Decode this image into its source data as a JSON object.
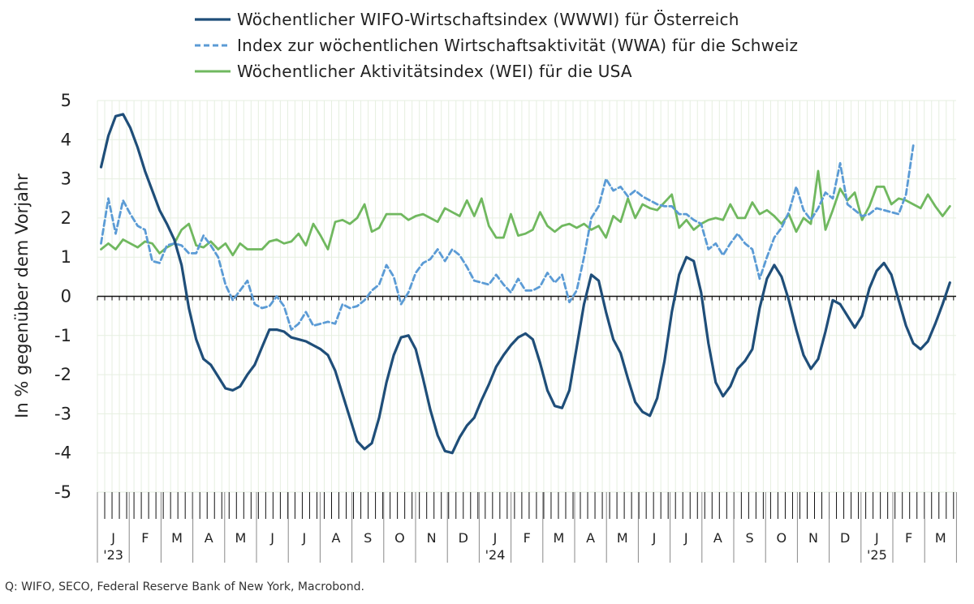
{
  "chart_data": {
    "type": "line",
    "ylabel": "In % gegenüber dem Vorjahr",
    "ylim": [
      -5,
      5
    ],
    "y_ticks": [
      5,
      4,
      3,
      2,
      1,
      0,
      -1,
      -2,
      -3,
      -4,
      -5
    ],
    "grid": true,
    "legend_position": "top",
    "x_unit": "weeks since first week of January 2023",
    "months": [
      "J",
      "F",
      "M",
      "A",
      "M",
      "J",
      "J",
      "A",
      "S",
      "O",
      "N",
      "D",
      "J",
      "F",
      "M",
      "A",
      "M",
      "J",
      "J",
      "A",
      "S",
      "O",
      "N",
      "D",
      "J",
      "F",
      "M"
    ],
    "year_labels": [
      {
        "month_index": 0,
        "label": "'23"
      },
      {
        "month_index": 12,
        "label": "'24"
      },
      {
        "month_index": 24,
        "label": "'25"
      }
    ],
    "series": [
      {
        "name": "Wöchentlicher WIFO-Wirtschaftsindex (WWWI) für Österreich",
        "color": "#1f4e79",
        "style": "solid",
        "values": [
          3.3,
          4.1,
          4.6,
          4.65,
          4.3,
          3.8,
          3.2,
          2.7,
          2.2,
          1.85,
          1.45,
          0.8,
          -0.3,
          -1.1,
          -1.6,
          -1.75,
          -2.05,
          -2.35,
          -2.4,
          -2.3,
          -2.0,
          -1.75,
          -1.3,
          -0.85,
          -0.85,
          -0.9,
          -1.05,
          -1.1,
          -1.15,
          -1.25,
          -1.35,
          -1.5,
          -1.9,
          -2.5,
          -3.1,
          -3.7,
          -3.9,
          -3.75,
          -3.1,
          -2.2,
          -1.5,
          -1.05,
          -1.0,
          -1.35,
          -2.1,
          -2.9,
          -3.55,
          -3.95,
          -4.0,
          -3.6,
          -3.3,
          -3.1,
          -2.65,
          -2.25,
          -1.8,
          -1.5,
          -1.25,
          -1.05,
          -0.95,
          -1.1,
          -1.7,
          -2.4,
          -2.8,
          -2.85,
          -2.4,
          -1.3,
          -0.2,
          0.55,
          0.4,
          -0.4,
          -1.1,
          -1.45,
          -2.1,
          -2.7,
          -2.95,
          -3.05,
          -2.6,
          -1.65,
          -0.4,
          0.55,
          1.0,
          0.9,
          0.1,
          -1.2,
          -2.2,
          -2.55,
          -2.3,
          -1.85,
          -1.65,
          -1.35,
          -0.3,
          0.45,
          0.8,
          0.5,
          -0.1,
          -0.85,
          -1.5,
          -1.85,
          -1.6,
          -0.9,
          -0.1,
          -0.2,
          -0.5,
          -0.8,
          -0.5,
          0.2,
          0.65,
          0.85,
          0.55,
          -0.1,
          -0.75,
          -1.2,
          -1.35,
          -1.15,
          -0.7,
          -0.2,
          0.35
        ]
      },
      {
        "name": "Index zur wöchentlichen Wirtschaftsaktivität (WWA) für die Schweiz",
        "color": "#5b9bd5",
        "style": "dashed",
        "values": [
          1.35,
          2.5,
          1.6,
          2.45,
          2.1,
          1.8,
          1.7,
          0.9,
          0.85,
          1.3,
          1.35,
          1.3,
          1.1,
          1.1,
          1.55,
          1.3,
          1.0,
          0.3,
          -0.1,
          0.15,
          0.4,
          -0.2,
          -0.3,
          -0.25,
          0.0,
          -0.25,
          -0.85,
          -0.7,
          -0.4,
          -0.75,
          -0.7,
          -0.65,
          -0.7,
          -0.2,
          -0.3,
          -0.25,
          -0.1,
          0.15,
          0.3,
          0.8,
          0.5,
          -0.2,
          0.1,
          0.6,
          0.85,
          0.95,
          1.2,
          0.9,
          1.2,
          1.05,
          0.75,
          0.4,
          0.35,
          0.3,
          0.55,
          0.3,
          0.1,
          0.45,
          0.15,
          0.15,
          0.25,
          0.6,
          0.35,
          0.55,
          -0.15,
          0.15,
          1.0,
          2.0,
          2.3,
          3.0,
          2.7,
          2.8,
          2.55,
          2.7,
          2.55,
          2.45,
          2.35,
          2.3,
          2.3,
          2.1,
          2.1,
          1.95,
          1.85,
          1.2,
          1.35,
          1.05,
          1.35,
          1.6,
          1.35,
          1.2,
          0.45,
          1.0,
          1.5,
          1.75,
          2.15,
          2.8,
          2.2,
          1.95,
          2.25,
          2.65,
          2.5,
          3.4,
          2.35,
          2.2,
          2.05,
          2.1,
          2.25,
          2.2,
          2.15,
          2.1,
          2.6,
          3.85
        ]
      },
      {
        "name": "Wöchentlicher Aktivitätsindex (WEI) für die USA",
        "color": "#70b85f",
        "style": "solid",
        "values": [
          1.2,
          1.35,
          1.2,
          1.45,
          1.35,
          1.25,
          1.4,
          1.35,
          1.1,
          1.25,
          1.35,
          1.7,
          1.85,
          1.3,
          1.25,
          1.4,
          1.2,
          1.35,
          1.05,
          1.35,
          1.2,
          1.2,
          1.2,
          1.4,
          1.45,
          1.35,
          1.4,
          1.6,
          1.3,
          1.85,
          1.55,
          1.2,
          1.9,
          1.95,
          1.85,
          2.0,
          2.35,
          1.65,
          1.75,
          2.1,
          2.1,
          2.1,
          1.95,
          2.05,
          2.1,
          2.0,
          1.9,
          2.25,
          2.15,
          2.05,
          2.45,
          2.05,
          2.5,
          1.8,
          1.5,
          1.5,
          2.1,
          1.55,
          1.6,
          1.7,
          2.15,
          1.8,
          1.65,
          1.8,
          1.85,
          1.75,
          1.85,
          1.7,
          1.8,
          1.5,
          2.05,
          1.9,
          2.5,
          2.0,
          2.35,
          2.25,
          2.2,
          2.4,
          2.6,
          1.75,
          1.95,
          1.7,
          1.85,
          1.95,
          2.0,
          1.95,
          2.35,
          2.0,
          2.0,
          2.4,
          2.1,
          2.2,
          2.05,
          1.85,
          2.1,
          1.65,
          2.0,
          1.85,
          3.2,
          1.7,
          2.2,
          2.75,
          2.45,
          2.65,
          1.95,
          2.3,
          2.8,
          2.8,
          2.35,
          2.5,
          2.45,
          2.35,
          2.25,
          2.6,
          2.3,
          2.05,
          2.3
        ]
      }
    ]
  },
  "source": "Q: WIFO, SECO, Federal Reserve Bank of New York, Macrobond."
}
